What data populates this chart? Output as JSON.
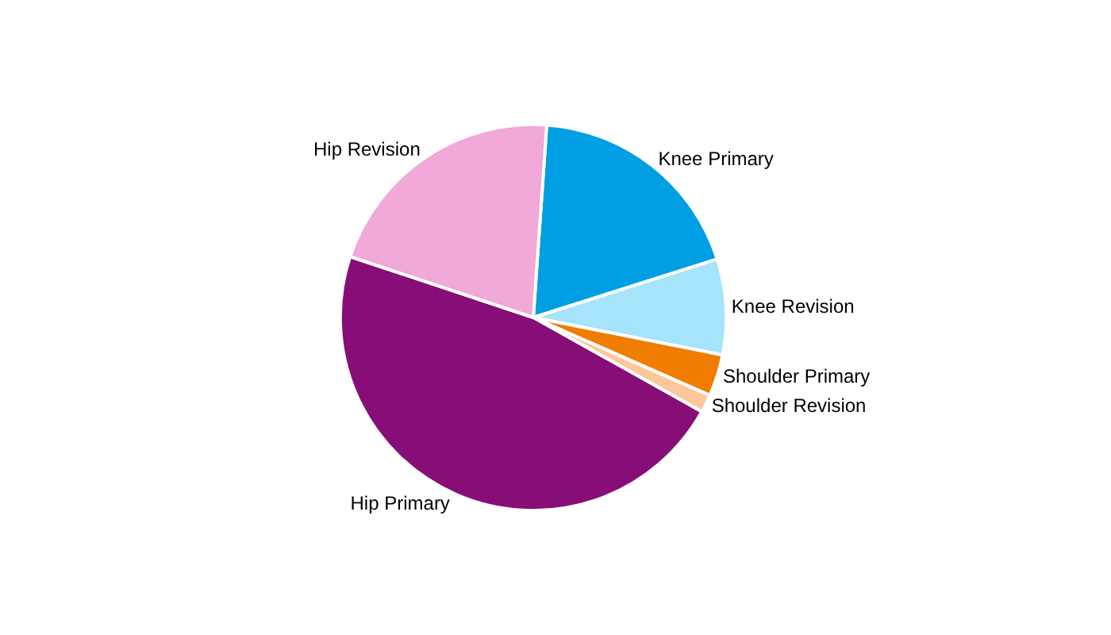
{
  "chart_data": {
    "type": "pie",
    "categories": [
      "Knee Primary",
      "Knee Revision",
      "Shoulder Primary",
      "Shoulder Revision",
      "Hip Primary",
      "Hip Revision"
    ],
    "values": [
      19,
      8,
      3.5,
      1.5,
      47,
      21
    ],
    "colors": [
      "#009fe3",
      "#a6e4fb",
      "#f07d00",
      "#fcc89b",
      "#870e77",
      "#f0a9d8"
    ],
    "legend": false
  }
}
